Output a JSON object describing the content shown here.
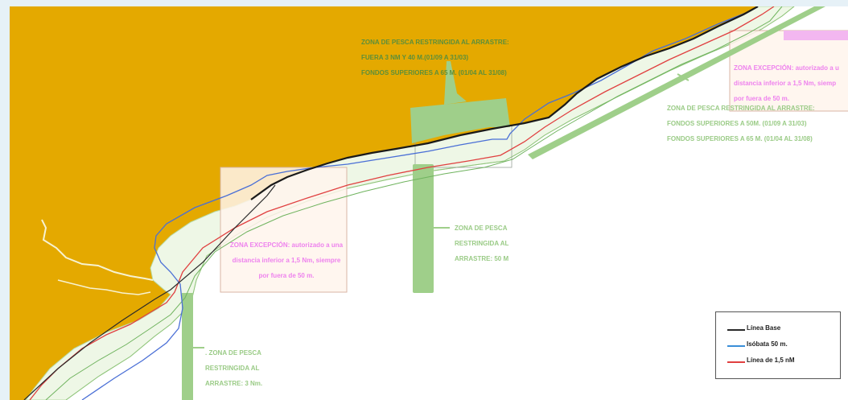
{
  "labels": {
    "restricted_north": [
      "ZONA DE PESCA RESTRINGIDA AL ARRASTRE:",
      "FUERA 3 NM Y 40 M.(01/09 A 31/03)",
      "FONDOS SUPERIORES A 65 M. (01/04 AL 31/08)"
    ],
    "exception_right": [
      "ZONA EXCEPCIÓN: autorizado a u",
      "distancia inferior a 1,5 Nm, siemp",
      "por fuera de 50 m."
    ],
    "restricted_east": [
      "ZONA DE PESCA RESTRINGIDA AL ARRASTRE:",
      "FONDOS SUPERIORES A 50M. (01/09 A 31/03)",
      "FONDOS SUPERIORES A 65 M. (01/04 AL 31/08)"
    ],
    "restricted_50m": [
      "ZONA DE PESCA",
      "RESTRINGIDA AL",
      "ARRASTRE: 50 M"
    ],
    "exception_center": [
      "ZONA EXCEPCIÓN: autorizado a una",
      "distancia inferior a 1,5 Nm, siempre",
      "por fuera de 50 m."
    ],
    "restricted_3nm": [
      ". ZONA DE PESCA",
      "RESTRINGIDA AL",
      "ARRASTRE: 3 Nm."
    ]
  },
  "legend": {
    "items": [
      {
        "label": "Línea Base",
        "color": "#2a2a2a"
      },
      {
        "label": "Isóbata 50 m.",
        "color": "#3a8ed8"
      },
      {
        "label": "Línea de 1,5 nM",
        "color": "#e04040"
      }
    ]
  },
  "colors": {
    "land": "#e4a900",
    "coast_buffer": "#eef7e6",
    "restricted_zone": "#9fcf8a",
    "exception_zone": "#fff4ec",
    "exception_border": "#d9b6a6",
    "label_magenta": "#ee82ee"
  }
}
